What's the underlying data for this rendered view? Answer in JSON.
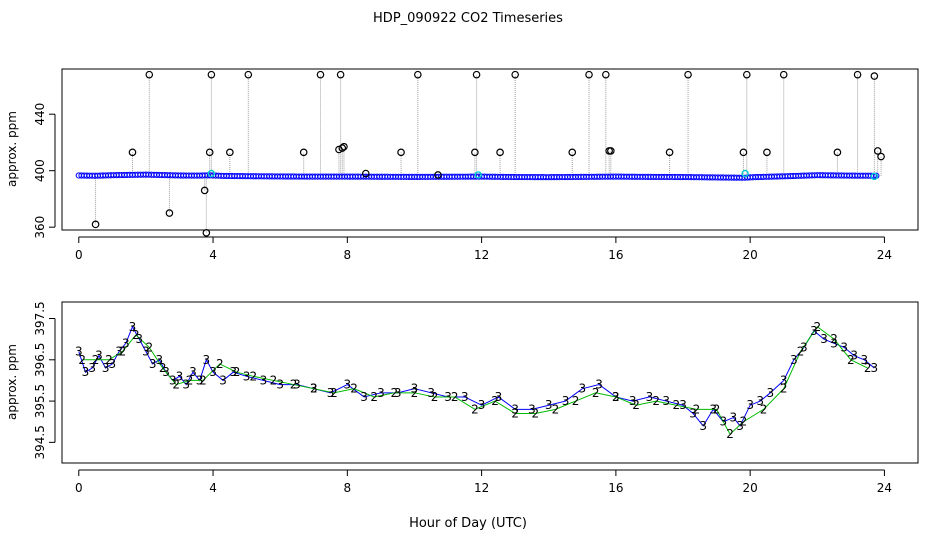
{
  "figure": {
    "title": "HDP_090922  CO2 Timeseries",
    "xlabel": "Hour of Day (UTC)"
  },
  "colors": {
    "inlet_blue": "#0000ff",
    "inlet_green": "#00bb00",
    "outlier_black": "#000000",
    "cyan_marker": "#00cccc",
    "spike_gray": "#a0a0a0"
  },
  "chart_data": [
    {
      "type": "scatter",
      "ylabel": "approx. ppm",
      "xlim": [
        -0.5,
        25
      ],
      "ylim": [
        358,
        472
      ],
      "x_ticks": [
        0,
        4,
        8,
        12,
        16,
        20,
        24
      ],
      "x_tick_labels": [
        "0",
        "4",
        "8",
        "12",
        "16",
        "20",
        "24"
      ],
      "y_ticks": [
        360,
        400,
        440
      ],
      "y_tick_labels": [
        "360",
        "400",
        "440"
      ],
      "baseline": {
        "series_color": "blue",
        "x": [
          0,
          0.5,
          1,
          1.5,
          2,
          2.5,
          3,
          3.5,
          3.9,
          4.3,
          5,
          6,
          7,
          8,
          9,
          10,
          11,
          12,
          13,
          14,
          15,
          16,
          17,
          18,
          19,
          19.8,
          20.2,
          21,
          22,
          23,
          23.8
        ],
        "y": [
          396.6,
          396.4,
          396.8,
          397.0,
          397.2,
          396.9,
          396.6,
          396.5,
          396.7,
          396.3,
          396.1,
          395.9,
          395.8,
          395.8,
          395.7,
          395.6,
          395.7,
          395.8,
          395.5,
          395.4,
          395.6,
          395.8,
          395.6,
          395.5,
          395.2,
          395.0,
          395.5,
          396.0,
          396.8,
          396.5,
          396.4
        ]
      },
      "outliers": {
        "x": [
          0.5,
          1.6,
          2.1,
          2.7,
          3.75,
          3.8,
          3.9,
          3.95,
          4.5,
          5.05,
          6.7,
          7.2,
          7.75,
          7.8,
          7.85,
          7.9,
          8.55,
          9.6,
          10.1,
          10.7,
          11.8,
          11.85,
          12.55,
          13.0,
          14.7,
          15.2,
          15.7,
          15.8,
          15.85,
          17.6,
          18.15,
          19.8,
          19.9,
          20.5,
          21.0,
          22.6,
          23.2,
          23.7,
          23.8,
          23.9
        ],
        "y": [
          362,
          413,
          468,
          370,
          386,
          356,
          413,
          468,
          413,
          468,
          413,
          468,
          415,
          468,
          416,
          417,
          398,
          413,
          468,
          397,
          413,
          468,
          413,
          468,
          413,
          468,
          468,
          414,
          414,
          413,
          468,
          413,
          468,
          413,
          468,
          413,
          468,
          467,
          414,
          410
        ]
      },
      "cyan_points": {
        "x": [
          3.95,
          11.9,
          19.85,
          23.7
        ],
        "y": [
          398,
          397,
          398,
          396
        ]
      }
    },
    {
      "type": "line",
      "ylabel": "approx. ppm",
      "xlim": [
        -0.5,
        25
      ],
      "ylim": [
        394.0,
        397.9
      ],
      "x_ticks": [
        0,
        4,
        8,
        12,
        16,
        20,
        24
      ],
      "x_tick_labels": [
        "0",
        "4",
        "8",
        "12",
        "16",
        "20",
        "24"
      ],
      "y_ticks": [
        394.5,
        395.5,
        396.5,
        397.5
      ],
      "y_tick_labels": [
        "394.5",
        "395.5",
        "396.5",
        "397.5"
      ],
      "marker_blue": "3",
      "marker_green": "2",
      "series": [
        {
          "marker": "3",
          "x": [
            0,
            0.2,
            0.4,
            0.6,
            0.8,
            1.0,
            1.2,
            1.4,
            1.6,
            1.8,
            2.0,
            2.2,
            2.4,
            2.6,
            2.8,
            3.0,
            3.2,
            3.4,
            3.6,
            3.8,
            4.0,
            4.3,
            4.6,
            5.0,
            5.5,
            6.0,
            6.5,
            7.0,
            7.5,
            8.0,
            8.5,
            9.0,
            9.5,
            10.0,
            10.5,
            11.0,
            11.5,
            12.0,
            12.5,
            13.0,
            13.5,
            14.0,
            14.5,
            15.0,
            15.5,
            16.0,
            16.5,
            17.0,
            17.5,
            18.0,
            18.3,
            18.6,
            18.9,
            19.2,
            19.5,
            19.7,
            20.0,
            20.3,
            20.6,
            21.0,
            21.3,
            21.6,
            21.9,
            22.2,
            22.5,
            22.8,
            23.1,
            23.4,
            23.7
          ],
          "y": [
            396.7,
            396.2,
            396.3,
            396.6,
            396.3,
            396.4,
            396.7,
            396.9,
            397.3,
            397.0,
            396.7,
            396.4,
            396.5,
            396.2,
            396.0,
            396.1,
            395.9,
            396.2,
            396.0,
            396.5,
            396.2,
            396.0,
            396.2,
            396.1,
            396.0,
            395.9,
            395.9,
            395.8,
            395.7,
            395.9,
            395.6,
            395.7,
            395.7,
            395.8,
            395.7,
            395.6,
            395.6,
            395.4,
            395.6,
            395.3,
            395.3,
            395.4,
            395.5,
            395.8,
            395.9,
            395.6,
            395.5,
            395.6,
            395.5,
            395.4,
            395.2,
            394.9,
            395.3,
            395.0,
            395.1,
            394.9,
            395.4,
            395.5,
            395.7,
            396.0,
            396.5,
            396.8,
            397.2,
            397.0,
            396.9,
            396.8,
            396.6,
            396.5,
            396.3
          ]
        },
        {
          "marker": "2",
          "x": [
            0.1,
            0.5,
            0.9,
            1.3,
            1.7,
            2.1,
            2.5,
            2.9,
            3.3,
            3.7,
            4.2,
            4.7,
            5.2,
            5.8,
            6.4,
            7.0,
            7.6,
            8.2,
            8.8,
            9.4,
            10.0,
            10.6,
            11.2,
            11.8,
            12.4,
            13.0,
            13.6,
            14.2,
            14.8,
            15.4,
            16.0,
            16.6,
            17.2,
            17.8,
            18.4,
            19.0,
            19.4,
            19.8,
            20.4,
            21.0,
            21.5,
            22.0,
            22.5,
            23.0,
            23.5
          ],
          "y": [
            396.5,
            396.5,
            396.5,
            396.7,
            397.1,
            396.8,
            396.3,
            395.9,
            396.0,
            396.0,
            396.4,
            396.2,
            396.1,
            396.0,
            395.9,
            395.8,
            395.7,
            395.8,
            395.6,
            395.7,
            395.7,
            395.6,
            395.6,
            395.3,
            395.5,
            395.2,
            395.2,
            395.3,
            395.5,
            395.7,
            395.6,
            395.4,
            395.5,
            395.4,
            395.3,
            395.3,
            394.7,
            395.0,
            395.3,
            395.8,
            396.7,
            397.3,
            397.0,
            396.5,
            396.3
          ]
        }
      ]
    }
  ]
}
